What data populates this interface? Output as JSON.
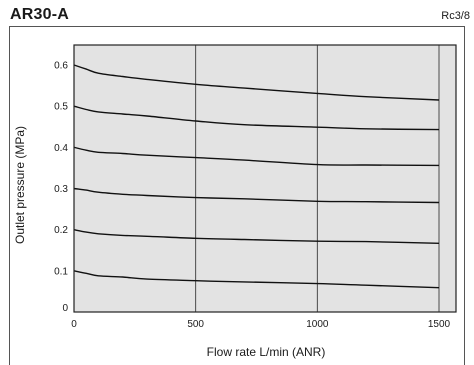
{
  "chart_data": {
    "type": "line",
    "title": "AR30-A",
    "port_label": "Rc3/8",
    "xlabel": "Flow rate L/min (ANR)",
    "ylabel": "Outlet pressure (MPa)",
    "xlim": [
      0,
      1500
    ],
    "ylim": [
      0,
      0.6
    ],
    "x_ticks": [
      "0",
      "500",
      "1000",
      "1500"
    ],
    "y_ticks": [
      "0",
      "0.1",
      "0.2",
      "0.3",
      "0.4",
      "0.5",
      "0.6"
    ],
    "grid": "vertical lines at 500 and 1000",
    "series": [
      {
        "x": [
          0,
          50,
          100,
          200,
          300,
          500,
          700,
          1000,
          1200,
          1500
        ],
        "y": [
          0.1,
          0.094,
          0.088,
          0.085,
          0.08,
          0.076,
          0.073,
          0.069,
          0.065,
          0.059
        ]
      },
      {
        "x": [
          0,
          50,
          100,
          200,
          300,
          500,
          700,
          1000,
          1200,
          1500
        ],
        "y": [
          0.2,
          0.194,
          0.19,
          0.186,
          0.184,
          0.179,
          0.176,
          0.172,
          0.171,
          0.167
        ]
      },
      {
        "x": [
          0,
          50,
          100,
          200,
          300,
          500,
          700,
          1000,
          1200,
          1500
        ],
        "y": [
          0.3,
          0.296,
          0.291,
          0.286,
          0.283,
          0.278,
          0.275,
          0.269,
          0.268,
          0.266
        ]
      },
      {
        "x": [
          0,
          50,
          100,
          200,
          300,
          500,
          700,
          1000,
          1200,
          1500
        ],
        "y": [
          0.4,
          0.393,
          0.388,
          0.385,
          0.381,
          0.375,
          0.369,
          0.358,
          0.357,
          0.356
        ]
      },
      {
        "x": [
          0,
          50,
          100,
          200,
          300,
          500,
          700,
          1000,
          1200,
          1500
        ],
        "y": [
          0.5,
          0.492,
          0.486,
          0.481,
          0.476,
          0.464,
          0.455,
          0.449,
          0.445,
          0.443
        ]
      },
      {
        "x": [
          0,
          50,
          100,
          200,
          300,
          500,
          700,
          1000,
          1200,
          1500
        ],
        "y": [
          0.6,
          0.59,
          0.58,
          0.572,
          0.565,
          0.553,
          0.544,
          0.531,
          0.523,
          0.515
        ]
      }
    ],
    "colors": {
      "plot_background": "#e3e3e3",
      "line": "#111111",
      "grid": "#3a3a3a"
    }
  }
}
